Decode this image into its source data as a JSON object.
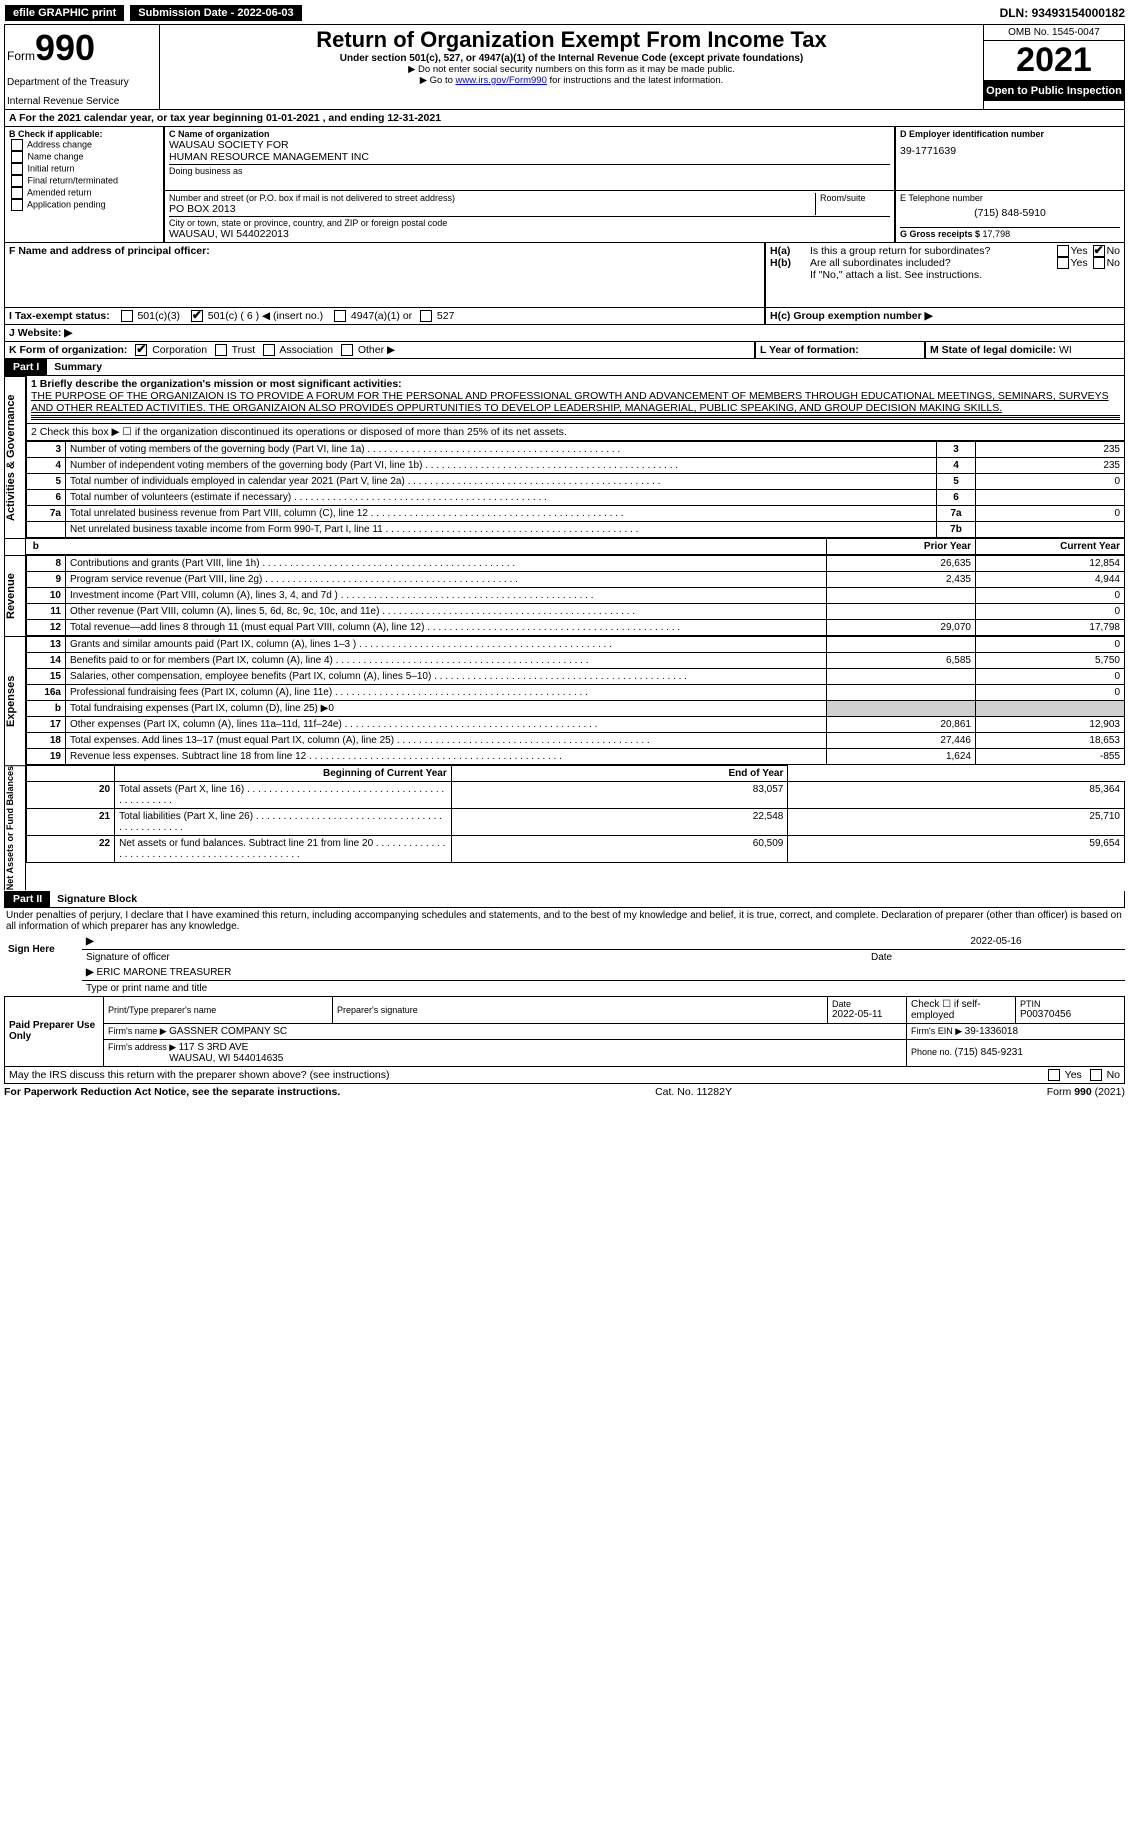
{
  "topbar": {
    "efile": "efile GRAPHIC print",
    "subdate_label": "Submission Date - ",
    "subdate": "2022-06-03",
    "dln_label": "DLN: ",
    "dln": "93493154000182"
  },
  "header": {
    "form_word": "Form",
    "form_num": "990",
    "dept": "Department of the Treasury",
    "irs": "Internal Revenue Service",
    "title": "Return of Organization Exempt From Income Tax",
    "sub": "Under section 501(c), 527, or 4947(a)(1) of the Internal Revenue Code (except private foundations)",
    "arrow1": "▶ Do not enter social security numbers on this form as it may be made public.",
    "arrow2_pre": "▶ Go to ",
    "arrow2_link": "www.irs.gov/Form990",
    "arrow2_post": " for instructions and the latest information.",
    "omb": "OMB No. 1545-0047",
    "year": "2021",
    "open": "Open to Public Inspection"
  },
  "a_line": "A For the 2021 calendar year, or tax year beginning 01-01-2021     , and ending 12-31-2021",
  "boxB": {
    "heading": "B Check if applicable:",
    "items": [
      "Address change",
      "Name change",
      "Initial return",
      "Final return/terminated",
      "Amended return",
      "Application pending"
    ]
  },
  "boxC": {
    "label": "C Name of organization",
    "name1": "WAUSAU SOCIETY FOR",
    "name2": "HUMAN RESOURCE MANAGEMENT INC",
    "dba": "Doing business as",
    "addr_label": "Number and street (or P.O. box if mail is not delivered to street address)",
    "room": "Room/suite",
    "addr": "PO BOX 2013",
    "city_label": "City or town, state or province, country, and ZIP or foreign postal code",
    "city": "WAUSAU, WI  544022013"
  },
  "boxD": {
    "label": "D Employer identification number",
    "value": "39-1771639"
  },
  "boxE": {
    "label": "E Telephone number",
    "value": "(715) 848-5910"
  },
  "boxG": {
    "label": "G Gross receipts $ ",
    "value": "17,798"
  },
  "boxF": {
    "label": "F  Name and address of principal officer:"
  },
  "boxH": {
    "a": "H(a)  Is this a a group return for subordinates?",
    "b": "H(b)  Are all subordinates included?",
    "note": "If \"No,\" attach a list. See instructions.",
    "c": "H(c)  Group exemption number ▶"
  },
  "boxI": {
    "label": "I  Tax-exempt status:",
    "opts": [
      "501(c)(3)",
      "501(c) ( 6 ) ◀ (insert no.)",
      "4947(a)(1) or",
      "527"
    ]
  },
  "boxJ": {
    "label": "J   Website: ▶"
  },
  "boxK": {
    "label": "K Form of organization:",
    "opts": [
      "Corporation",
      "Trust",
      "Association",
      "Other ▶"
    ]
  },
  "boxL": {
    "label": "L Year of formation:"
  },
  "boxM": {
    "label": "M State of legal domicile: ",
    "value": "WI"
  },
  "part1": {
    "num": "Part I",
    "title": "Summary",
    "line1_label": "1  Briefly describe the organization's mission or most significant activities:",
    "line1_text": "THE PURPOSE OF THE ORGANIZAION IS TO PROVIDE A FORUM FOR THE PERSONAL AND PROFESSIONAL GROWTH AND ADVANCEMENT OF MEMBERS THROUGH EDUCATIONAL MEETINGS, SEMINARS, SURVEYS AND OTHER REALTED ACTIVITIES. THE ORGANIZAION ALSO PROVIDES OPPURTUNITIES TO DEVELOP LEADERSHIP, MANAGERIAL, PUBLIC SPEAKING, AND GROUP DECISION MAKING SKILLS.",
    "line2": "2   Check this box ▶ ☐  if the organization discontinued its operations or disposed of more than 25% of its net assets.",
    "sections": {
      "activities": "Activities & Governance",
      "revenue": "Revenue",
      "expenses": "Expenses",
      "netassets": "Net Assets or Fund Balances"
    },
    "rows_ag": [
      {
        "n": "3",
        "t": "Number of voting members of the governing body (Part VI, line 1a)",
        "c": "3",
        "v": "235"
      },
      {
        "n": "4",
        "t": "Number of independent voting members of the governing body (Part VI, line 1b)",
        "c": "4",
        "v": "235"
      },
      {
        "n": "5",
        "t": "Total number of individuals employed in calendar year 2021 (Part V, line 2a)",
        "c": "5",
        "v": "0"
      },
      {
        "n": "6",
        "t": "Total number of volunteers (estimate if necessary)",
        "c": "6",
        "v": ""
      },
      {
        "n": "7a",
        "t": "Total unrelated business revenue from Part VIII, column (C), line 12",
        "c": "7a",
        "v": "0"
      },
      {
        "n": "",
        "t": "Net unrelated business taxable income from Form 990-T, Part I, line 11",
        "c": "7b",
        "v": ""
      }
    ],
    "col_headers": {
      "prior": "Prior Year",
      "current": "Current Year"
    },
    "rows_rev": [
      {
        "n": "8",
        "t": "Contributions and grants (Part VIII, line 1h)",
        "p": "26,635",
        "c": "12,854"
      },
      {
        "n": "9",
        "t": "Program service revenue (Part VIII, line 2g)",
        "p": "2,435",
        "c": "4,944"
      },
      {
        "n": "10",
        "t": "Investment income (Part VIII, column (A), lines 3, 4, and 7d )",
        "p": "",
        "c": "0"
      },
      {
        "n": "11",
        "t": "Other revenue (Part VIII, column (A), lines 5, 6d, 8c, 9c, 10c, and 11e)",
        "p": "",
        "c": "0"
      },
      {
        "n": "12",
        "t": "Total revenue—add lines 8 through 11 (must equal Part VIII, column (A), line 12)",
        "p": "29,070",
        "c": "17,798"
      }
    ],
    "rows_exp": [
      {
        "n": "13",
        "t": "Grants and similar amounts paid (Part IX, column (A), lines 1–3 )",
        "p": "",
        "c": "0"
      },
      {
        "n": "14",
        "t": "Benefits paid to or for members (Part IX, column (A), line 4)",
        "p": "6,585",
        "c": "5,750"
      },
      {
        "n": "15",
        "t": "Salaries, other compensation, employee benefits (Part IX, column (A), lines 5–10)",
        "p": "",
        "c": "0"
      },
      {
        "n": "16a",
        "t": "Professional fundraising fees (Part IX, column (A), line 11e)",
        "p": "",
        "c": "0"
      },
      {
        "n": "b",
        "t": "Total fundraising expenses (Part IX, column (D), line 25) ▶0",
        "p": "SHADED",
        "c": "SHADED"
      },
      {
        "n": "17",
        "t": "Other expenses (Part IX, column (A), lines 11a–11d, 11f–24e)",
        "p": "20,861",
        "c": "12,903"
      },
      {
        "n": "18",
        "t": "Total expenses. Add lines 13–17 (must equal Part IX, column (A), line 25)",
        "p": "27,446",
        "c": "18,653"
      },
      {
        "n": "19",
        "t": "Revenue less expenses. Subtract line 18 from line 12",
        "p": "1,624",
        "c": "-855"
      }
    ],
    "col_headers2": {
      "prior": "Beginning of Current Year",
      "current": "End of Year"
    },
    "rows_na": [
      {
        "n": "20",
        "t": "Total assets (Part X, line 16)",
        "p": "83,057",
        "c": "85,364"
      },
      {
        "n": "21",
        "t": "Total liabilities (Part X, line 26)",
        "p": "22,548",
        "c": "25,710"
      },
      {
        "n": "22",
        "t": "Net assets or fund balances. Subtract line 21 from line 20",
        "p": "60,509",
        "c": "59,654"
      }
    ]
  },
  "part2": {
    "num": "Part II",
    "title": "Signature Block",
    "decl": "Under penalties of perjury, I declare that I have examined this return, including accompanying schedules and statements, and to the best of my knowledge and belief, it is true, correct, and complete. Declaration of preparer (other than officer) is based on all information of which preparer has any knowledge.",
    "sign_here": "Sign Here",
    "sig_officer": "Signature of officer",
    "sig_date": "2022-05-16",
    "date_label": "Date",
    "officer_name": "ERIC MARONE  TREASURER",
    "type_name": "Type or print name and title",
    "paid": "Paid Preparer Use Only",
    "prep_name_label": "Print/Type preparer's name",
    "prep_sig_label": "Preparer's signature",
    "prep_date": "2022-05-11",
    "check_self": "Check ☐ if self-employed",
    "ptin_label": "PTIN",
    "ptin": "P00370456",
    "firm_name_label": "Firm's name    ▶ ",
    "firm_name": "GASSNER COMPANY SC",
    "firm_ein_label": "Firm's EIN ▶ ",
    "firm_ein": "39-1336018",
    "firm_addr_label": "Firm's address ▶ ",
    "firm_addr1": "117 S 3RD AVE",
    "firm_addr2": "WAUSAU, WI  544014635",
    "firm_phone_label": "Phone no. ",
    "firm_phone": "(715) 845-9231",
    "may_irs": "May the IRS discuss this return with the preparer shown above? (see instructions)"
  },
  "footer": {
    "left": "For Paperwork Reduction Act Notice, see the separate instructions.",
    "mid": "Cat. No. 11282Y",
    "right_pre": "Form ",
    "right_bold": "990",
    "right_post": " (2021)"
  },
  "yesno": {
    "yes": "Yes",
    "no": "No"
  }
}
